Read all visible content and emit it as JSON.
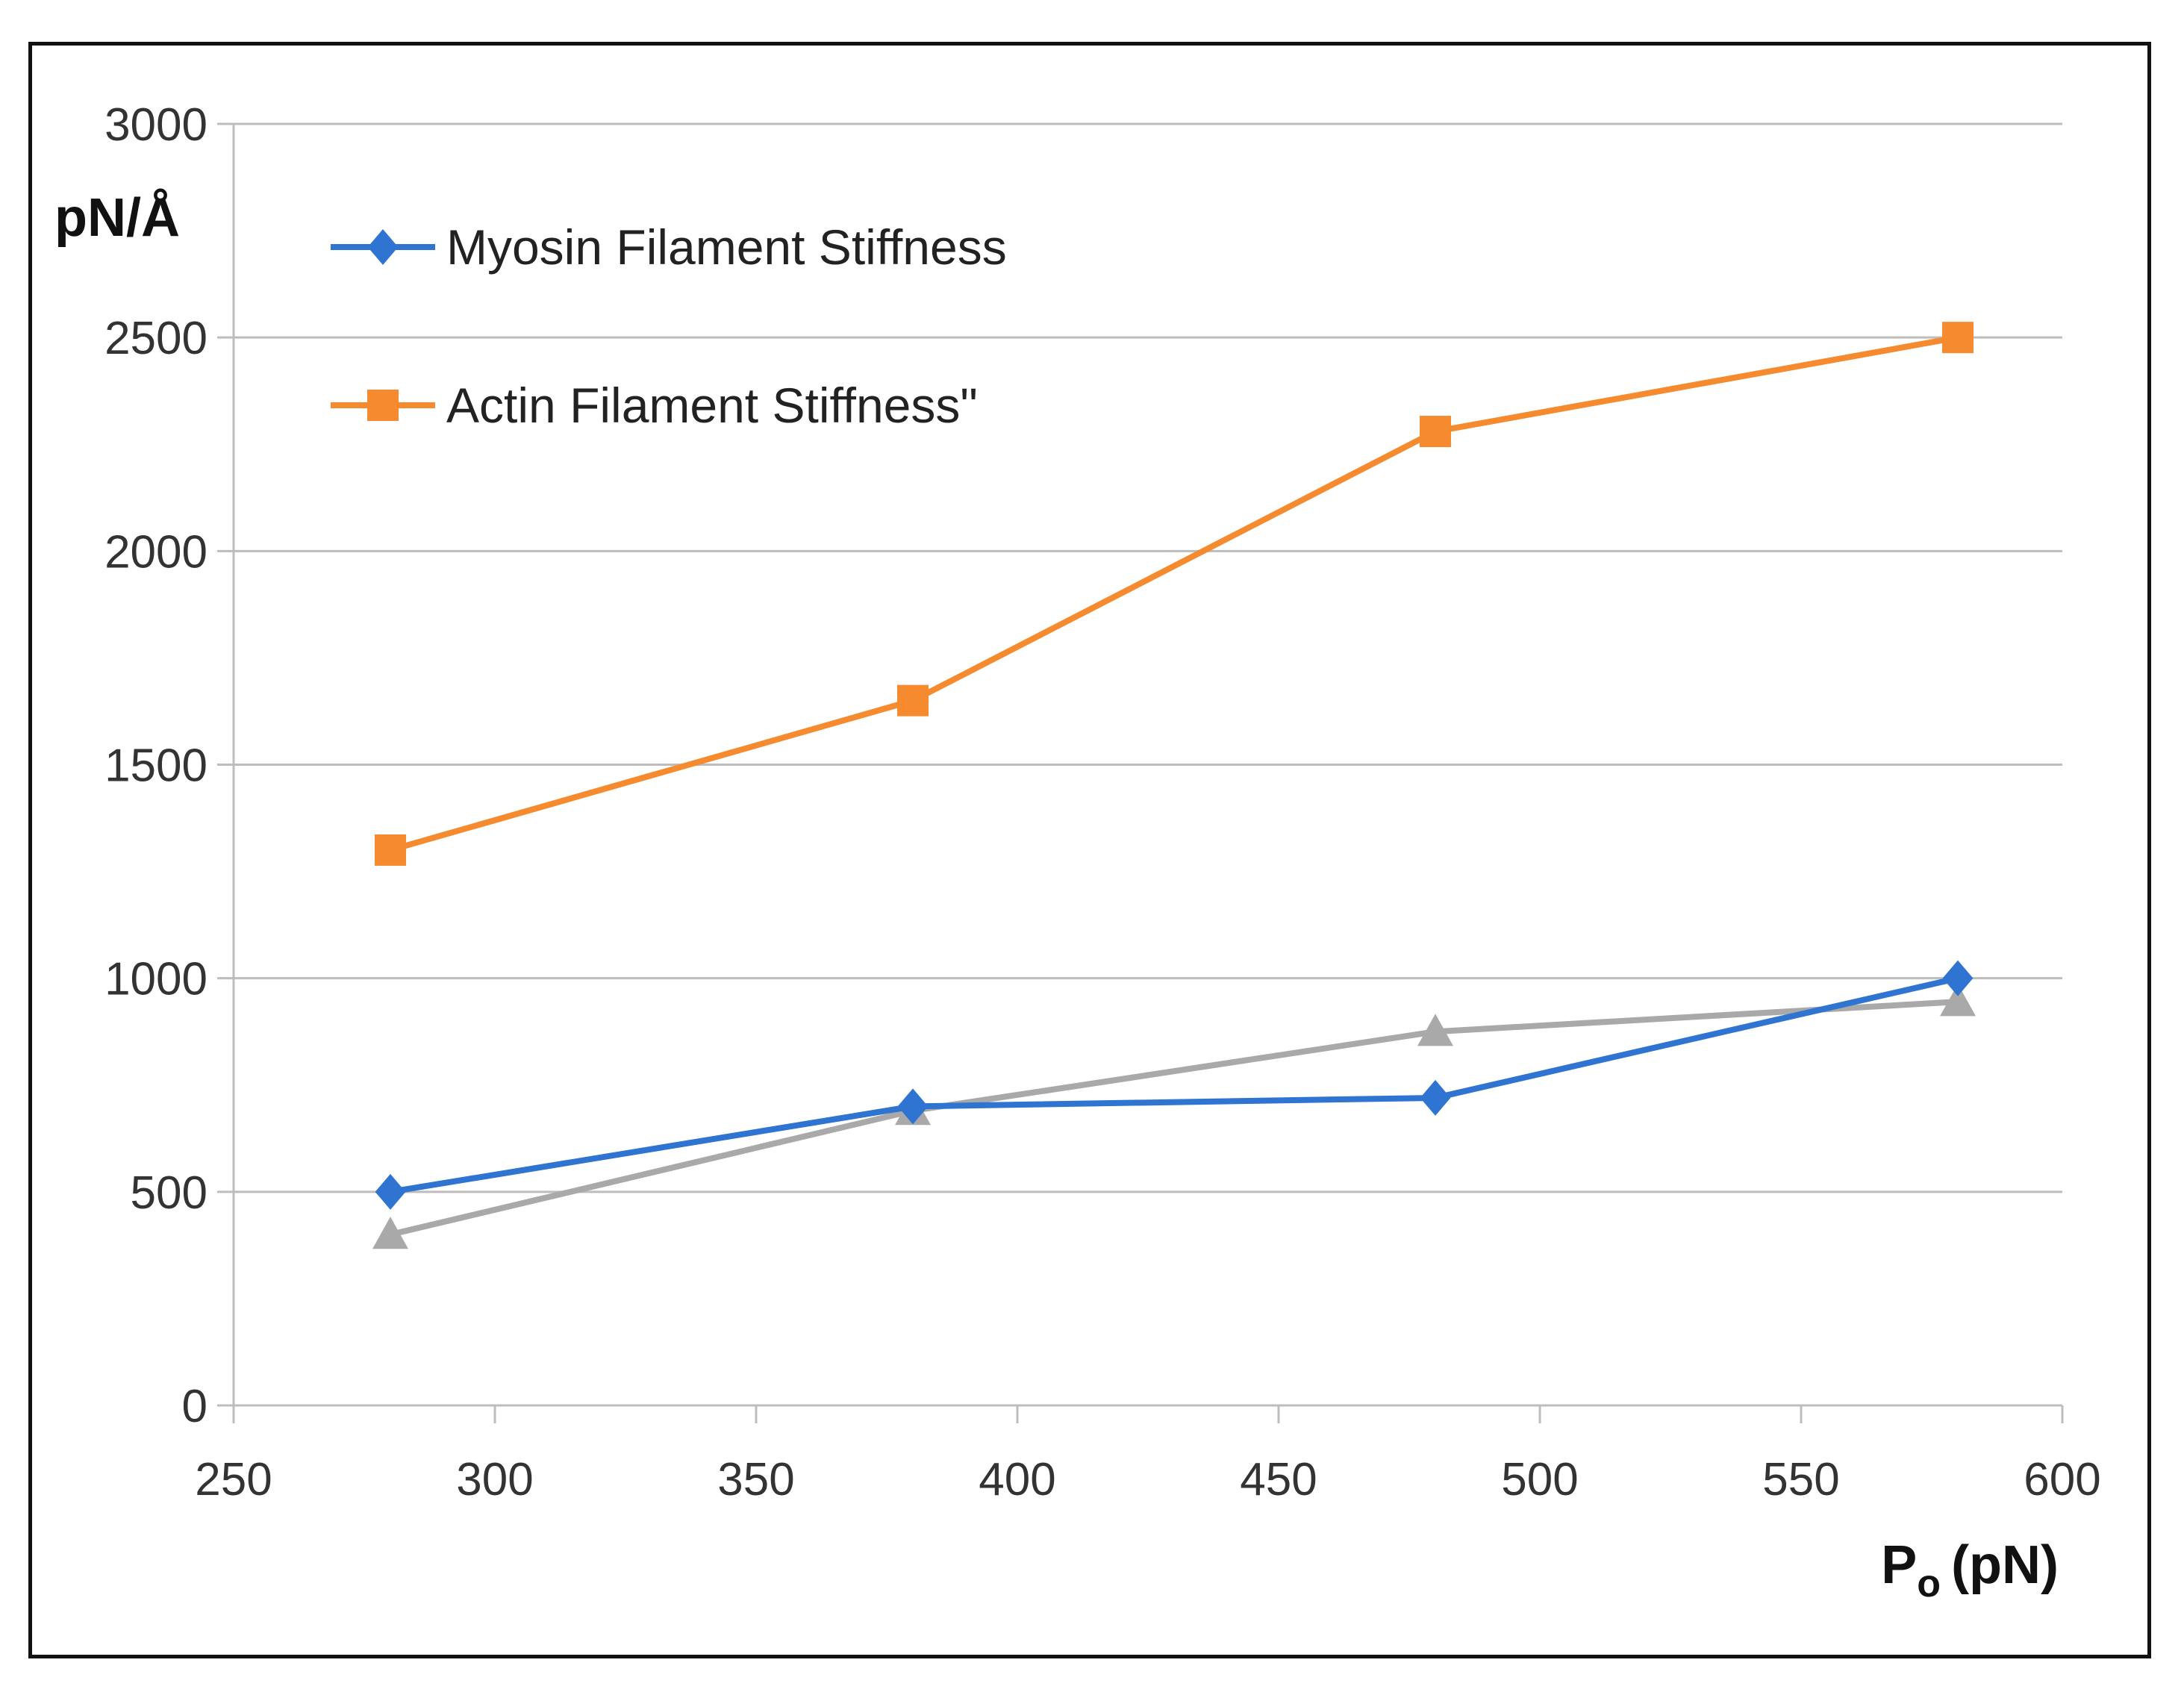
{
  "chart_data": {
    "type": "line",
    "ylabel": "pN/Å",
    "xlabel": "Po (pN)",
    "xlabel_main": "P",
    "xlabel_sub": "o",
    "xlabel_unit": "(pN)",
    "xlim": [
      250,
      600
    ],
    "ylim": [
      0,
      3000
    ],
    "xticks": [
      250,
      300,
      350,
      400,
      450,
      500,
      550,
      600
    ],
    "yticks": [
      0,
      500,
      1000,
      1500,
      2000,
      2500,
      3000
    ],
    "grid": "horizontal",
    "legend_position": "top-left",
    "x": [
      280,
      380,
      480,
      580
    ],
    "series": [
      {
        "name": "Myosin Filament Stiffness",
        "color": "#2F74D0",
        "marker": "diamond",
        "values": [
          500,
          700,
          720,
          1000
        ],
        "in_legend": true
      },
      {
        "name": "Actin Filament Stiffness\"",
        "color": "#F58A2E",
        "marker": "square",
        "values": [
          1300,
          1650,
          2280,
          2500
        ],
        "in_legend": true
      },
      {
        "color": "#A9A9A9",
        "marker": "triangle",
        "values": [
          400,
          690,
          875,
          945
        ],
        "in_legend": false
      }
    ]
  }
}
